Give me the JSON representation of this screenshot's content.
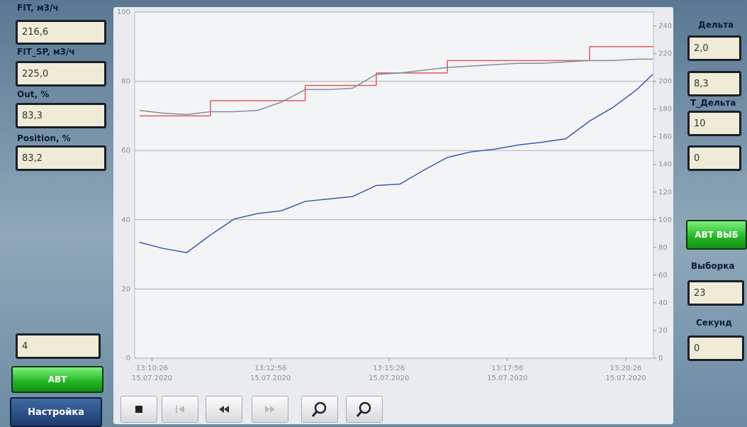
{
  "left_panel": {
    "fields": [
      {
        "label": "FIT, м3/ч",
        "value": "216,6"
      },
      {
        "label": "FIT_SP, м3/ч",
        "value": "225,0"
      },
      {
        "label": "Out, %",
        "value": "83,3"
      },
      {
        "label": "Position, %",
        "value": "83,2"
      }
    ],
    "counter": "4",
    "auto_button": "АВТ",
    "settings_button": "Настройка"
  },
  "right_panel": {
    "delta_label": "Дельта",
    "delta_values": [
      "2,0",
      "8,3"
    ],
    "t_delta_label": "T_Дельта",
    "t_delta_values": [
      "10",
      "0"
    ],
    "auto_select_button": "АВТ ВЫБ",
    "sample_label": "Выборка",
    "sample_value": "23",
    "seconds_label": "Секунд",
    "seconds_value": "0"
  },
  "chart_data": {
    "type": "line",
    "x": [
      "2020-07-15T13:10:10",
      "2020-07-15T13:10:40",
      "2020-07-15T13:11:10",
      "2020-07-15T13:11:40",
      "2020-07-15T13:12:10",
      "2020-07-15T13:12:40",
      "2020-07-15T13:13:10",
      "2020-07-15T13:13:40",
      "2020-07-15T13:14:10",
      "2020-07-15T13:14:40",
      "2020-07-15T13:15:10",
      "2020-07-15T13:15:40",
      "2020-07-15T13:16:10",
      "2020-07-15T13:16:40",
      "2020-07-15T13:17:10",
      "2020-07-15T13:17:40",
      "2020-07-15T13:18:10",
      "2020-07-15T13:18:40",
      "2020-07-15T13:19:10",
      "2020-07-15T13:19:40",
      "2020-07-15T13:20:10",
      "2020-07-15T13:20:40",
      "2020-07-15T13:21:00"
    ],
    "xlim": [
      "2020-07-15T13:10:04",
      "2020-07-15T13:21:01"
    ],
    "xticks": [
      {
        "value": "2020-07-15T13:10:26",
        "label": "13:10:26\n15.07.2020"
      },
      {
        "value": "2020-07-15T13:12:56",
        "label": "13:12:56\n15.07.2020"
      },
      {
        "value": "2020-07-15T13:15:26",
        "label": "13:15:26\n15.07.2020"
      },
      {
        "value": "2020-07-15T13:17:56",
        "label": "13:17:56\n15.07.2020"
      },
      {
        "value": "2020-07-15T13:20:26",
        "label": "13:20:26\n15.07.2020"
      }
    ],
    "ylim": [
      0,
      100
    ],
    "yticks": [
      0,
      20,
      40,
      60,
      80,
      100
    ],
    "y2lim": [
      0,
      250
    ],
    "y2ticks": [
      0,
      20,
      40,
      60,
      80,
      100,
      120,
      140,
      160,
      180,
      200,
      220,
      240
    ],
    "grid": true,
    "series": [
      {
        "color": "#e05a5a",
        "axis": "y2",
        "step": true,
        "values": [
          175,
          175,
          175,
          186,
          186,
          186,
          186,
          197,
          197,
          197,
          206,
          206,
          206,
          215,
          215,
          215,
          215,
          215,
          215,
          225,
          225,
          225,
          225
        ]
      },
      {
        "color": "#7f8fa0",
        "axis": "y2",
        "values": [
          179,
          177,
          176,
          178,
          178,
          179,
          185,
          194,
          194,
          195,
          205,
          206,
          208,
          210,
          211,
          212,
          213,
          213,
          214,
          215,
          215,
          216,
          216
        ]
      },
      {
        "color": "#3b5bab",
        "values": [
          33.5,
          31.7,
          30.5,
          35.6,
          40.2,
          41.8,
          42.6,
          45.3,
          46,
          46.7,
          49.9,
          50.3,
          54.3,
          58,
          59.6,
          60.4,
          61.6,
          62.4,
          63.4,
          68.5,
          72.5,
          77.6,
          82
        ]
      }
    ]
  }
}
